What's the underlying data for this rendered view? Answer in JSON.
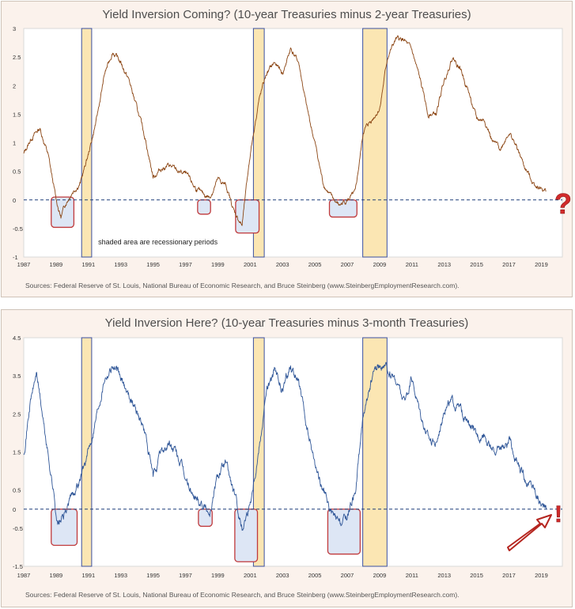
{
  "colors": {
    "panel_bg": "#fbf2ec",
    "plot_bg": "#ffffff",
    "spread_10y_2y": "#8b4513",
    "spread_10y_3m": "#2e5597",
    "recession_fill": "#fbe6b3",
    "recession_border": "#3a50a0",
    "highlight_border": "#c0393b",
    "highlight_fill": "#dde6f5",
    "zero_line": "#1f3f7a",
    "annotation_red": "#d22b2b"
  },
  "recessions": [
    [
      1990.58,
      1991.2
    ],
    [
      2001.2,
      2001.87
    ],
    [
      2007.96,
      2009.46
    ]
  ],
  "charts": [
    {
      "title": "Yield Inversion Coming? (10-year Treasuries minus 2-year Treasuries)",
      "source": "Sources: Federal Reserve of St. Louis, National Bureau of Economic Research, and Bruce Steinberg (www.SteinbergEmploymentResearch.com).",
      "note": "shaded area are recessionary periods",
      "annotation_symbol": "?",
      "annotation_icon": "question-mark-icon",
      "y_ticks": [
        "3",
        "2.5",
        "2",
        "1.5",
        "1",
        "0.5",
        "0",
        "-0.5",
        "-1"
      ],
      "x_ticks": [
        "1987",
        "1989",
        "1991",
        "1993",
        "1995",
        "1997",
        "1999",
        "2001",
        "2003",
        "2005",
        "2007",
        "2009",
        "2011",
        "2013",
        "2015",
        "2017",
        "2019"
      ],
      "highlights": [
        [
          1988.7,
          1990.1,
          0.05,
          -0.48
        ],
        [
          1997.75,
          1998.55,
          0.0,
          -0.25
        ],
        [
          2000.1,
          2001.55,
          0.0,
          -0.58
        ],
        [
          2005.9,
          2007.6,
          0.0,
          -0.3
        ]
      ]
    },
    {
      "title": "Yield Inversion Here? (10-year Treasuries minus 3-month Treasuries)",
      "source": "Sources: Federal Reserve of St. Louis, National Bureau of Economic Research, and Bruce Steinberg (www.SteinbergEmploymentResearch.com).",
      "annotation_symbol": "!",
      "annotation_icon": "exclamation-mark-icon",
      "y_ticks": [
        "4.5",
        "3.5",
        "2.5",
        "1.5",
        "0.5",
        "0",
        "-0.5",
        "-1.5"
      ],
      "x_ticks": [
        "1987",
        "1989",
        "1991",
        "1993",
        "1995",
        "1997",
        "1999",
        "2001",
        "2003",
        "2005",
        "2007",
        "2009",
        "2011",
        "2013",
        "2015",
        "2017",
        "2019"
      ],
      "highlights": [
        [
          1988.7,
          1990.3,
          0.0,
          -0.95
        ],
        [
          1997.8,
          1998.65,
          0.0,
          -0.45
        ],
        [
          2000.05,
          2001.45,
          0.0,
          -1.38
        ],
        [
          2005.8,
          2007.8,
          0.0,
          -1.18
        ]
      ]
    }
  ],
  "chart_data": [
    {
      "type": "line",
      "title": "Yield Inversion Coming? (10-year Treasuries minus 2-year Treasuries)",
      "xlabel": "",
      "ylabel": "",
      "xlim": [
        1987,
        2020.3
      ],
      "ylim": [
        -1,
        3
      ],
      "series": [
        {
          "x": [
            1987.0,
            1987.5,
            1988.0,
            1988.5,
            1989.0,
            1989.3,
            1989.6,
            1990.0,
            1990.5,
            1991.0,
            1991.5,
            1992.0,
            1992.5,
            1993.0,
            1993.5,
            1994.0,
            1994.5,
            1995.0,
            1995.5,
            1996.0,
            1996.5,
            1997.0,
            1997.5,
            1998.0,
            1998.5,
            1999.0,
            1999.5,
            2000.0,
            2000.5,
            2001.0,
            2001.5,
            2002.0,
            2002.5,
            2003.0,
            2003.5,
            2004.0,
            2004.5,
            2005.0,
            2005.5,
            2006.0,
            2006.5,
            2007.0,
            2007.5,
            2008.0,
            2008.5,
            2009.0,
            2009.5,
            2010.0,
            2010.5,
            2011.0,
            2011.5,
            2012.0,
            2012.5,
            2013.0,
            2013.5,
            2014.0,
            2014.5,
            2015.0,
            2015.5,
            2016.0,
            2016.5,
            2017.0,
            2017.5,
            2018.0,
            2018.5,
            2019.0,
            2019.3
          ],
          "values": [
            0.8,
            1.1,
            1.25,
            0.8,
            0.0,
            -0.3,
            -0.05,
            0.15,
            0.3,
            0.8,
            1.4,
            2.2,
            2.6,
            2.4,
            2.1,
            1.6,
            1.1,
            0.4,
            0.55,
            0.6,
            0.5,
            0.45,
            0.25,
            0.1,
            0.05,
            0.35,
            0.25,
            -0.2,
            -0.45,
            0.8,
            1.7,
            2.2,
            2.4,
            2.2,
            2.65,
            2.4,
            1.6,
            1.0,
            0.3,
            0.05,
            -0.1,
            0.0,
            0.1,
            1.2,
            1.4,
            1.6,
            2.5,
            2.8,
            2.8,
            2.6,
            2.1,
            1.5,
            1.5,
            2.1,
            2.5,
            2.3,
            1.9,
            1.4,
            1.4,
            1.0,
            0.9,
            1.2,
            0.9,
            0.55,
            0.3,
            0.2,
            0.15
          ]
        }
      ],
      "annotations": [
        "shaded area are recessionary periods"
      ]
    },
    {
      "type": "line",
      "title": "Yield Inversion Here? (10-year Treasuries minus 3-month Treasuries)",
      "xlabel": "",
      "ylabel": "",
      "xlim": [
        1987,
        2020.3
      ],
      "ylim": [
        -1.5,
        4.5
      ],
      "series": [
        {
          "x": [
            1987.0,
            1987.4,
            1987.8,
            1988.3,
            1988.8,
            1989.1,
            1989.5,
            1990.0,
            1990.5,
            1991.0,
            1991.5,
            1992.0,
            1992.5,
            1993.0,
            1993.5,
            1994.0,
            1994.5,
            1995.0,
            1995.5,
            1996.0,
            1996.5,
            1997.0,
            1997.5,
            1998.0,
            1998.5,
            1999.0,
            1999.5,
            2000.0,
            2000.5,
            2001.0,
            2001.5,
            2002.0,
            2002.5,
            2003.0,
            2003.5,
            2004.0,
            2004.5,
            2005.0,
            2005.5,
            2006.0,
            2006.5,
            2007.0,
            2007.5,
            2008.0,
            2008.5,
            2009.0,
            2009.5,
            2010.0,
            2010.5,
            2011.0,
            2011.5,
            2012.0,
            2012.5,
            2013.0,
            2013.5,
            2014.0,
            2014.5,
            2015.0,
            2015.5,
            2016.0,
            2016.5,
            2017.0,
            2017.5,
            2018.0,
            2018.5,
            2019.0,
            2019.3
          ],
          "values": [
            1.5,
            2.8,
            3.6,
            2.0,
            0.6,
            -0.4,
            -0.2,
            0.4,
            0.8,
            1.5,
            2.5,
            3.5,
            3.8,
            3.4,
            3.0,
            2.6,
            2.0,
            0.8,
            1.5,
            1.7,
            1.4,
            0.8,
            0.3,
            0.2,
            -0.1,
            0.9,
            1.2,
            0.4,
            -0.5,
            0.2,
            1.5,
            3.1,
            3.6,
            3.1,
            3.8,
            3.3,
            2.1,
            1.2,
            0.5,
            -0.1,
            -0.45,
            -0.2,
            0.5,
            2.5,
            3.4,
            3.8,
            3.6,
            3.4,
            2.8,
            3.4,
            2.6,
            1.9,
            1.7,
            2.7,
            2.8,
            2.6,
            2.2,
            1.9,
            2.0,
            1.5,
            1.6,
            1.8,
            1.2,
            0.8,
            0.6,
            0.15,
            0.0
          ]
        }
      ]
    }
  ]
}
